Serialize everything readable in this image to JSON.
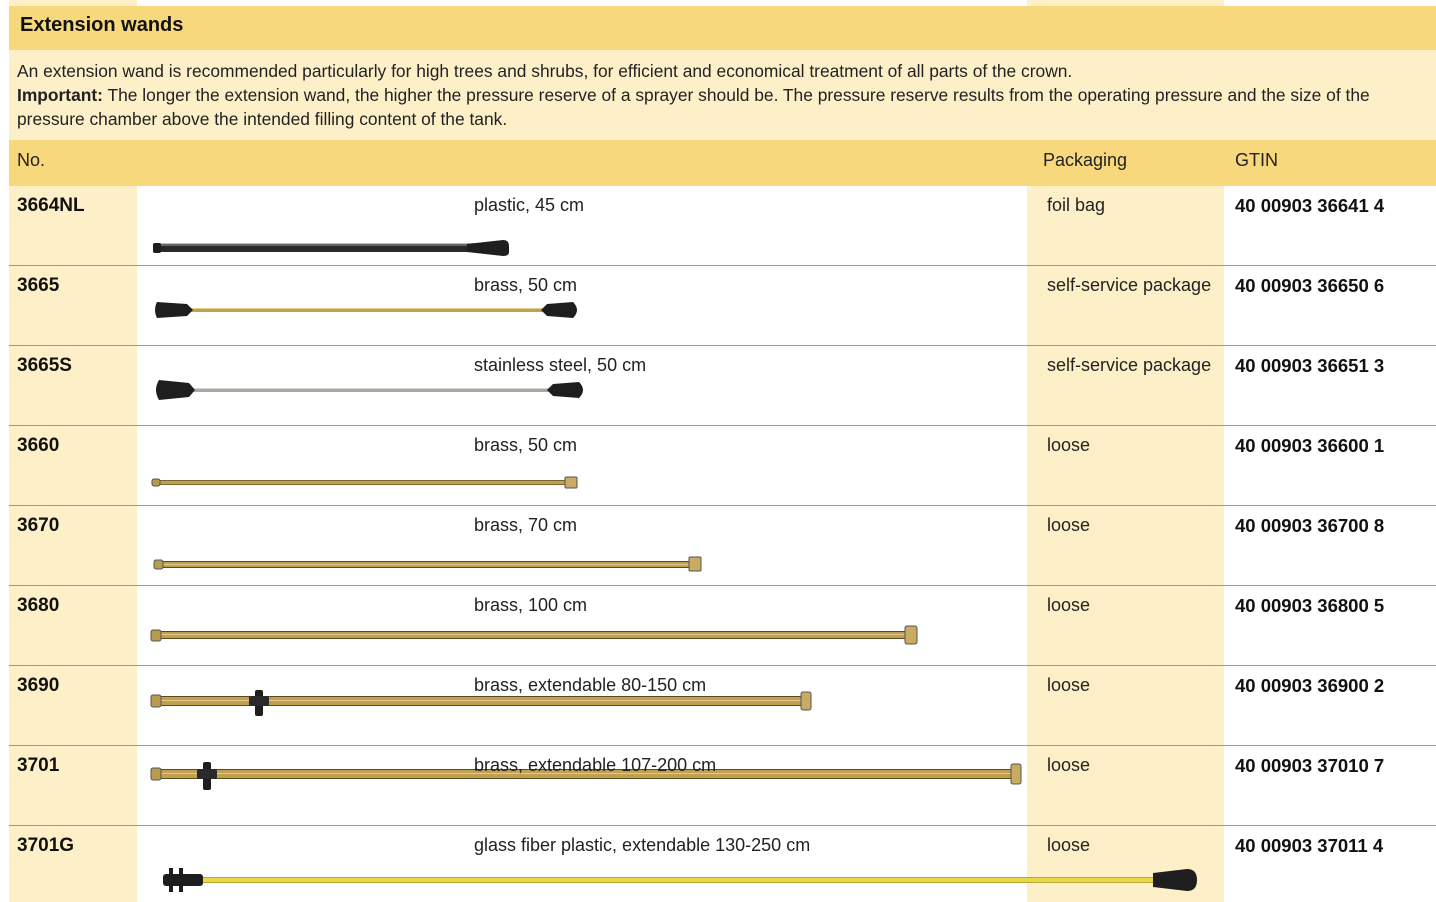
{
  "title": "Extension wands",
  "intro": {
    "line1": "An extension wand is recommended particularly for high trees and shrubs, for efficient and economical treatment of all parts of the crown.",
    "important_label": "Important:",
    "important_text": " The longer the extension wand, the higher the pressure reserve of a sprayer should be. The pressure reserve results from the operating pressure and the size of the pressure chamber above the intended filling content of the tank."
  },
  "columns": {
    "no": "No.",
    "packaging": "Packaging",
    "gtin": "GTIN"
  },
  "rows": [
    {
      "no": "3664NL",
      "desc": "plastic, 45 cm",
      "packaging": "foil bag",
      "gtin": "40 00903 36641 4"
    },
    {
      "no": "3665",
      "desc": "brass, 50 cm",
      "packaging": "self-service package",
      "gtin": "40 00903 36650 6"
    },
    {
      "no": "3665S",
      "desc": "stainless steel, 50 cm",
      "packaging": "self-service package",
      "gtin": "40 00903 36651 3"
    },
    {
      "no": "3660",
      "desc": "brass, 50 cm",
      "packaging": "loose",
      "gtin": "40 00903 36600 1"
    },
    {
      "no": "3670",
      "desc": "brass, 70 cm",
      "packaging": "loose",
      "gtin": "40 00903 36700 8"
    },
    {
      "no": "3680",
      "desc": "brass, 100 cm",
      "packaging": "loose",
      "gtin": "40 00903 36800 5"
    },
    {
      "no": "3690",
      "desc": "brass, extendable 80-150 cm",
      "packaging": "loose",
      "gtin": "40 00903 36900 2"
    },
    {
      "no": "3701",
      "desc": "brass, extendable 107-200 cm",
      "packaging": "loose",
      "gtin": "40 00903 37010 7"
    },
    {
      "no": "3701G",
      "desc": "glass fiber plastic, extendable 130-250 cm",
      "packaging": "loose",
      "gtin": "40 00903 37011 4"
    }
  ],
  "colors": {
    "header_yellow": "#f8d87c",
    "light_yellow": "#fdf0c8",
    "brass": "#c2a052",
    "plastic_black": "#2a2a2a",
    "steel": "#a9a9a2",
    "fiber_yellow": "#e8d84a"
  }
}
